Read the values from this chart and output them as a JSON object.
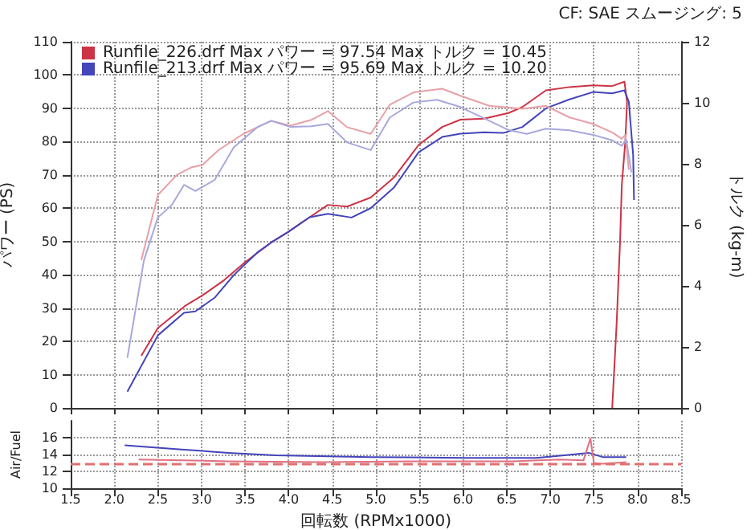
{
  "chart_data": [
    {
      "type": "line",
      "annotations": [
        "CF: SAE スムージング: 5"
      ],
      "ylabel": "パワー (PS)",
      "y2label": "トルク (kg-m)",
      "xlim": [
        1.5,
        8.5
      ],
      "xticks": [
        1.5,
        2,
        2.5,
        3,
        3.5,
        4,
        4.5,
        5,
        5.5,
        6,
        6.5,
        7,
        7.5,
        8,
        8.5
      ],
      "ylim": [
        0,
        110
      ],
      "yticks": [
        0,
        10,
        20,
        30,
        40,
        50,
        60,
        70,
        80,
        90,
        100,
        110
      ],
      "y2lim": [
        0,
        12
      ],
      "y2ticks": [
        0,
        2,
        4,
        6,
        8,
        10,
        12
      ],
      "grid": true,
      "legend": "top left",
      "marker": "none",
      "tick_labels": "y",
      "series": [
        {
          "name": "Runfile_226.drf Max パワー = 97.54 Max トルク = 10.45",
          "color": "#cc3344",
          "x": [
            2.31,
            2.5,
            2.82,
            3.01,
            3.26,
            3.5,
            3.8,
            3.99,
            4.24,
            4.45,
            4.67,
            4.94,
            5.21,
            5.49,
            5.76,
            5.97,
            6.24,
            6.52,
            6.68,
            6.95,
            7.22,
            7.49,
            7.71,
            7.85,
            7.88,
            7.86,
            7.82,
            7.8,
            7.76,
            7.71
          ],
          "values": [
            15.7,
            24,
            30.8,
            33.8,
            38.4,
            43.8,
            49.7,
            52.8,
            57.3,
            61,
            60.5,
            63.2,
            69.3,
            79,
            84.4,
            86.6,
            86.9,
            88.6,
            90.4,
            95.4,
            96.4,
            96.9,
            96.7,
            98,
            92,
            80,
            67,
            50,
            25,
            0
          ]
        },
        {
          "name": "Runfile_213.drf Max パワー = 95.69 Max トルク = 10.20",
          "color": "#4444bb",
          "x": [
            2.15,
            2.5,
            2.8,
            2.93,
            3.15,
            3.37,
            3.64,
            3.8,
            3.99,
            4.24,
            4.45,
            4.72,
            4.94,
            5.21,
            5.49,
            5.76,
            5.97,
            6.24,
            6.46,
            6.68,
            6.95,
            7.22,
            7.49,
            7.71,
            7.85,
            7.9,
            7.95,
            7.96
          ],
          "values": [
            4.9,
            21.8,
            28.6,
            29,
            33.1,
            39.9,
            46.7,
            49.7,
            52.8,
            57.3,
            58.3,
            57.2,
            60,
            66.3,
            76.8,
            81.4,
            82.4,
            82.8,
            82.6,
            84.4,
            90,
            92.7,
            94.9,
            94.5,
            95.4,
            92,
            76,
            62.5
          ]
        },
        {
          "color": "#e8a0a8",
          "axis": "y2",
          "x": [
            2.31,
            2.5,
            2.72,
            2.88,
            3.01,
            3.2,
            3.48,
            3.8,
            4.02,
            4.26,
            4.45,
            4.67,
            4.94,
            5.16,
            5.43,
            5.76,
            5.97,
            6.3,
            6.68,
            6.95,
            7.22,
            7.49,
            7.71,
            7.82,
            7.86,
            7.9
          ],
          "values": [
            4.84,
            6.98,
            7.64,
            7.88,
            7.96,
            8.46,
            8.98,
            9.41,
            9.25,
            9.44,
            9.73,
            9.2,
            8.98,
            9.94,
            10.34,
            10.46,
            10.23,
            9.9,
            9.8,
            9.9,
            9.52,
            9.31,
            9.03,
            8.82,
            8.95,
            7.8
          ]
        },
        {
          "color": "#a8a8dd",
          "axis": "y2",
          "x": [
            2.15,
            2.34,
            2.5,
            2.66,
            2.8,
            2.93,
            3.15,
            3.37,
            3.64,
            3.8,
            4.02,
            4.26,
            4.45,
            4.67,
            4.94,
            5.16,
            5.43,
            5.7,
            5.97,
            6.3,
            6.52,
            6.73,
            6.95,
            7.22,
            7.49,
            7.71,
            7.82,
            7.87,
            7.93
          ],
          "values": [
            1.64,
            4.84,
            6.24,
            6.65,
            7.31,
            7.11,
            7.47,
            8.54,
            9.2,
            9.41,
            9.21,
            9.23,
            9.31,
            8.7,
            8.45,
            9.52,
            10.01,
            10.1,
            9.86,
            9.41,
            9.11,
            8.98,
            9.15,
            9.1,
            8.95,
            8.77,
            8.59,
            8.8,
            7.72
          ]
        }
      ]
    },
    {
      "type": "line",
      "xlabel": "回転数 (RPMx1000)",
      "ylabel": "Air/Fuel",
      "xlim": [
        1.5,
        8.5
      ],
      "xticks": [
        1.5,
        {
          "value": 2,
          "label": "2.0"
        },
        2.5,
        {
          "value": 3,
          "label": "3.0"
        },
        3.5,
        {
          "value": 4,
          "label": "4.0"
        },
        4.5,
        {
          "value": 5,
          "label": "5.0"
        },
        5.5,
        {
          "value": 6,
          "label": "6.0"
        },
        6.5,
        {
          "value": 7,
          "label": "7.0"
        },
        7.5,
        {
          "value": 8,
          "label": "8.0"
        },
        8.5
      ],
      "ylim": [
        10,
        18
      ],
      "yticks": [
        10,
        12,
        14,
        16
      ],
      "grid": true,
      "marker": "none",
      "ref_lines": [
        {
          "axis": "y",
          "value": 13,
          "color": "#e07070",
          "line_style": "dashed"
        }
      ],
      "series": [
        {
          "color": "#4444bb",
          "x": [
            2.12,
            2.77,
            3.31,
            3.85,
            4.94,
            6.03,
            6.84,
            7.16,
            7.44,
            7.6,
            7.87
          ],
          "values": [
            15.1,
            14.6,
            14.2,
            13.9,
            13.7,
            13.6,
            13.6,
            13.9,
            14.2,
            13.7,
            13.7
          ]
        },
        {
          "color": "#e07080",
          "x": [
            2.28,
            3.31,
            4.4,
            5.48,
            6.57,
            7.1,
            7.38,
            7.46,
            7.5,
            7.6,
            7.87
          ],
          "values": [
            13.4,
            13.2,
            13.1,
            13.2,
            13.2,
            13.4,
            13.3,
            15.9,
            13,
            12.9,
            13.1
          ]
        }
      ]
    }
  ]
}
